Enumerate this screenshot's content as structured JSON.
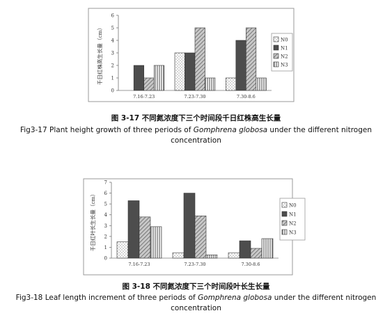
{
  "fill_colors": {
    "N0": "#ffffff",
    "N1": "#4d4d4d",
    "N2": "#b8b8b8",
    "N3": "#f4f4f4"
  },
  "chart_data": [
    {
      "type": "bar",
      "categories": [
        "7.16-7.23",
        "7.23-7.30",
        "7.30-8.6"
      ],
      "series": [
        {
          "name": "N0",
          "values": [
            0,
            3,
            1
          ]
        },
        {
          "name": "N1",
          "values": [
            2,
            3,
            4
          ]
        },
        {
          "name": "N2",
          "values": [
            1,
            5,
            5
          ]
        },
        {
          "name": "N3",
          "values": [
            2,
            1,
            1
          ]
        }
      ],
      "ylabel": "千日红株高生长量（cm）",
      "ylim": [
        0,
        6
      ],
      "yticks": [
        "0",
        "1",
        "2",
        "3",
        "4",
        "5",
        "6"
      ],
      "legend": "right",
      "caption_cn": "图 3-17 不同氮浓度下三个时间段千日红株高生长量",
      "caption_en_pre": "Fig3-17 Plant height growth of three periods of ",
      "caption_en_species": "Gomphrena globosa",
      "caption_en_post": " under the different nitrogen",
      "caption_en_line2": "concentration"
    },
    {
      "type": "bar",
      "categories": [
        "7.16-7.23",
        "7.23-7.30",
        "7.30-8.6"
      ],
      "series": [
        {
          "name": "N0",
          "values": [
            1.5,
            0.5,
            0.5
          ]
        },
        {
          "name": "N1",
          "values": [
            5.3,
            6,
            1.6
          ]
        },
        {
          "name": "N2",
          "values": [
            3.8,
            3.9,
            0.9
          ]
        },
        {
          "name": "N3",
          "values": [
            2.9,
            0.3,
            1.8
          ]
        }
      ],
      "ylabel": "千日红叶长生长量（cm）",
      "ylim": [
        0,
        7
      ],
      "yticks": [
        "0",
        "1",
        "2",
        "3",
        "4",
        "5",
        "6",
        "7"
      ],
      "legend": "right",
      "caption_cn": "图 3-18 不同氮浓度下三个时间段叶长生长量",
      "caption_en_pre": "Fig3-18 Leaf length increment of three periods of ",
      "caption_en_species": "Gomphrena globosa",
      "caption_en_post": " under the different nitrogen",
      "caption_en_line2": "concentration"
    }
  ]
}
